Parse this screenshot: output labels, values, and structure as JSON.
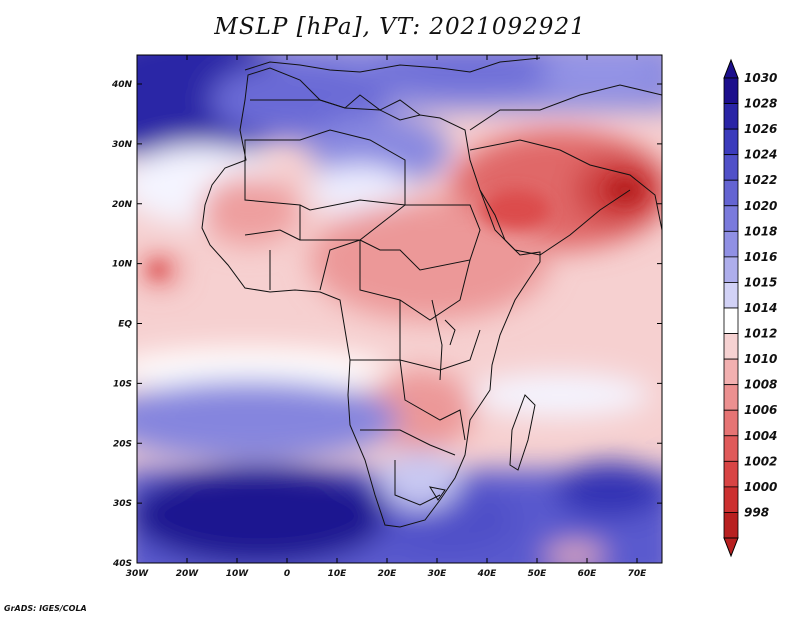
{
  "title": "MSLP [hPa], VT: 2021092921",
  "credit": "GrADS: IGES/COLA",
  "lat_labels": [
    "40N",
    "30N",
    "20N",
    "10N",
    "EQ",
    "10S",
    "20S",
    "30S",
    "40S"
  ],
  "lon_labels": [
    "30W",
    "20W",
    "10W",
    "0",
    "10E",
    "20E",
    "30E",
    "40E",
    "50E",
    "60E",
    "70E"
  ],
  "colorbar": {
    "levels": [
      "1030",
      "1028",
      "1026",
      "1024",
      "1022",
      "1020",
      "1018",
      "1016",
      "1015",
      "1014",
      "1012",
      "1010",
      "1008",
      "1006",
      "1004",
      "1002",
      "1000",
      "998"
    ],
    "colors": [
      "#1c0f8c",
      "#2a25a6",
      "#3b3bbc",
      "#5050c8",
      "#6464d2",
      "#7a7adc",
      "#9090e4",
      "#aeaeec",
      "#d2d2f6",
      "#ffffff",
      "#f6d2d2",
      "#f2b0b0",
      "#ec9090",
      "#e67474",
      "#e05a5a",
      "#d84444",
      "#cc3030",
      "#b82020"
    ]
  }
}
